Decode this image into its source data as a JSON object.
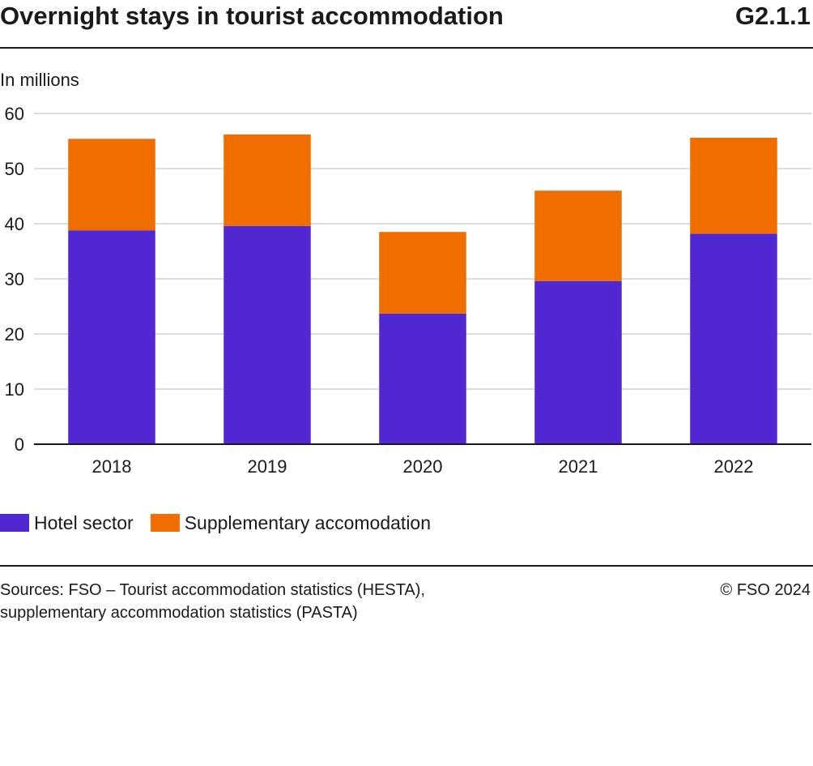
{
  "header": {
    "title": "Overnight stays in tourist accommodation",
    "figure_code": "G2.1.1",
    "unit_label": "In millions"
  },
  "chart_data": {
    "type": "bar",
    "stacked": true,
    "title": "Overnight stays in tourist accommodation",
    "ylabel": "In millions",
    "xlabel": "",
    "categories": [
      "2018",
      "2019",
      "2020",
      "2021",
      "2022"
    ],
    "series": [
      {
        "name": "Hotel sector",
        "color": "#5028D2",
        "values": [
          38.8,
          39.6,
          23.7,
          29.6,
          38.2
        ]
      },
      {
        "name": "Supplementary accomodation",
        "color": "#F06E00",
        "values": [
          16.6,
          16.6,
          14.8,
          16.4,
          17.4
        ]
      }
    ],
    "ylim": [
      0,
      60
    ],
    "yticks": [
      0,
      10,
      20,
      30,
      40,
      50,
      60
    ],
    "grid": true,
    "legend_position": "bottom-left"
  },
  "footer": {
    "sources_line1": "Sources: FSO – Tourist accommodation statistics (HESTA),",
    "sources_line2": "supplementary accommodation statistics (PASTA)",
    "copyright": "© FSO 2024"
  }
}
